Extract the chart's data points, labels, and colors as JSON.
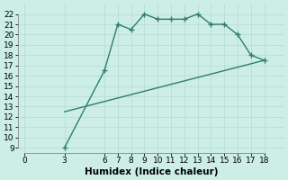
{
  "line1_x": [
    3,
    6,
    7,
    8,
    9,
    10,
    11,
    12,
    13,
    14,
    15,
    16,
    17,
    18
  ],
  "line1_y": [
    9,
    16.5,
    21,
    20.5,
    22,
    21.5,
    21.5,
    21.5,
    22,
    21,
    21,
    20,
    18,
    17.5
  ],
  "line2_x": [
    3,
    18
  ],
  "line2_y": [
    12.5,
    17.5
  ],
  "line_color": "#2e7d6e",
  "bg_color": "#cceee6",
  "grid_major_color": "#b8ddd6",
  "grid_minor_color": "#d4ede8",
  "xlabel": "Humidex (Indice chaleur)",
  "xticks": [
    0,
    3,
    6,
    7,
    8,
    9,
    10,
    11,
    12,
    13,
    14,
    15,
    16,
    17,
    18
  ],
  "yticks": [
    9,
    10,
    11,
    12,
    13,
    14,
    15,
    16,
    17,
    18,
    19,
    20,
    21,
    22
  ],
  "xlim": [
    -0.5,
    19.5
  ],
  "ylim": [
    8.5,
    23.0
  ],
  "marker": "+",
  "markersize": 4,
  "linewidth": 1.0,
  "font_size": 6.5,
  "xlabel_fontsize": 7.5
}
